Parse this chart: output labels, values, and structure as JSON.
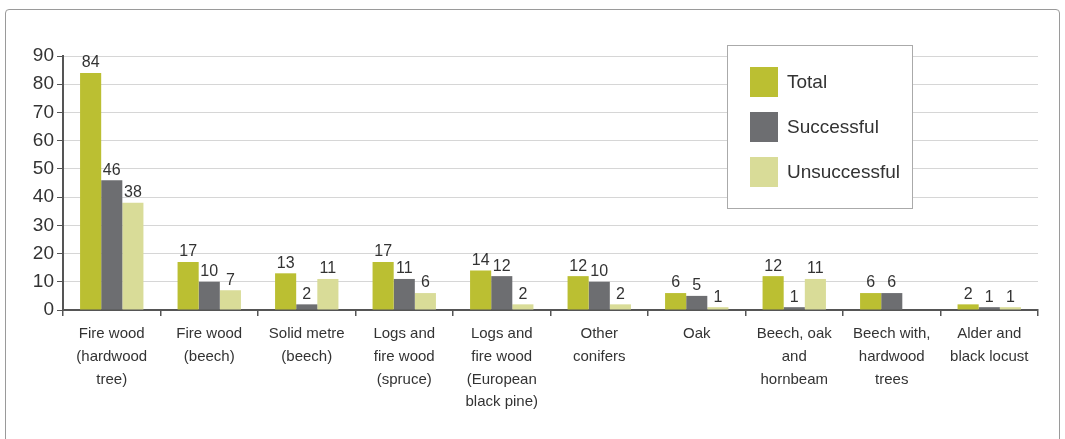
{
  "chart_data": {
    "type": "bar",
    "categories": [
      "Fire wood (hardwood tree)",
      "Fire wood (beech)",
      "Solid metre (beech)",
      "Logs and fire wood (spruce)",
      "Logs and fire wood (European black pine)",
      "Other conifers",
      "Oak",
      "Beech, oak and hornbeam",
      "Beech with, hardwood trees",
      "Alder and black locust"
    ],
    "series": [
      {
        "name": "Total",
        "color": "#bbbf32",
        "values": [
          84,
          17,
          13,
          17,
          14,
          12,
          6,
          12,
          6,
          2
        ]
      },
      {
        "name": "Successful",
        "color": "#6d6e71",
        "values": [
          46,
          10,
          2,
          11,
          12,
          10,
          5,
          1,
          6,
          1
        ]
      },
      {
        "name": "Unsuccessful",
        "color": "#d9dc98",
        "values": [
          38,
          7,
          11,
          6,
          2,
          2,
          1,
          11,
          null,
          1
        ]
      }
    ],
    "ylim": [
      0,
      90
    ],
    "yticks": [
      0,
      10,
      20,
      30,
      40,
      50,
      60,
      70,
      80,
      90
    ],
    "grid": "y",
    "legend": "top right",
    "data_labels": true
  }
}
